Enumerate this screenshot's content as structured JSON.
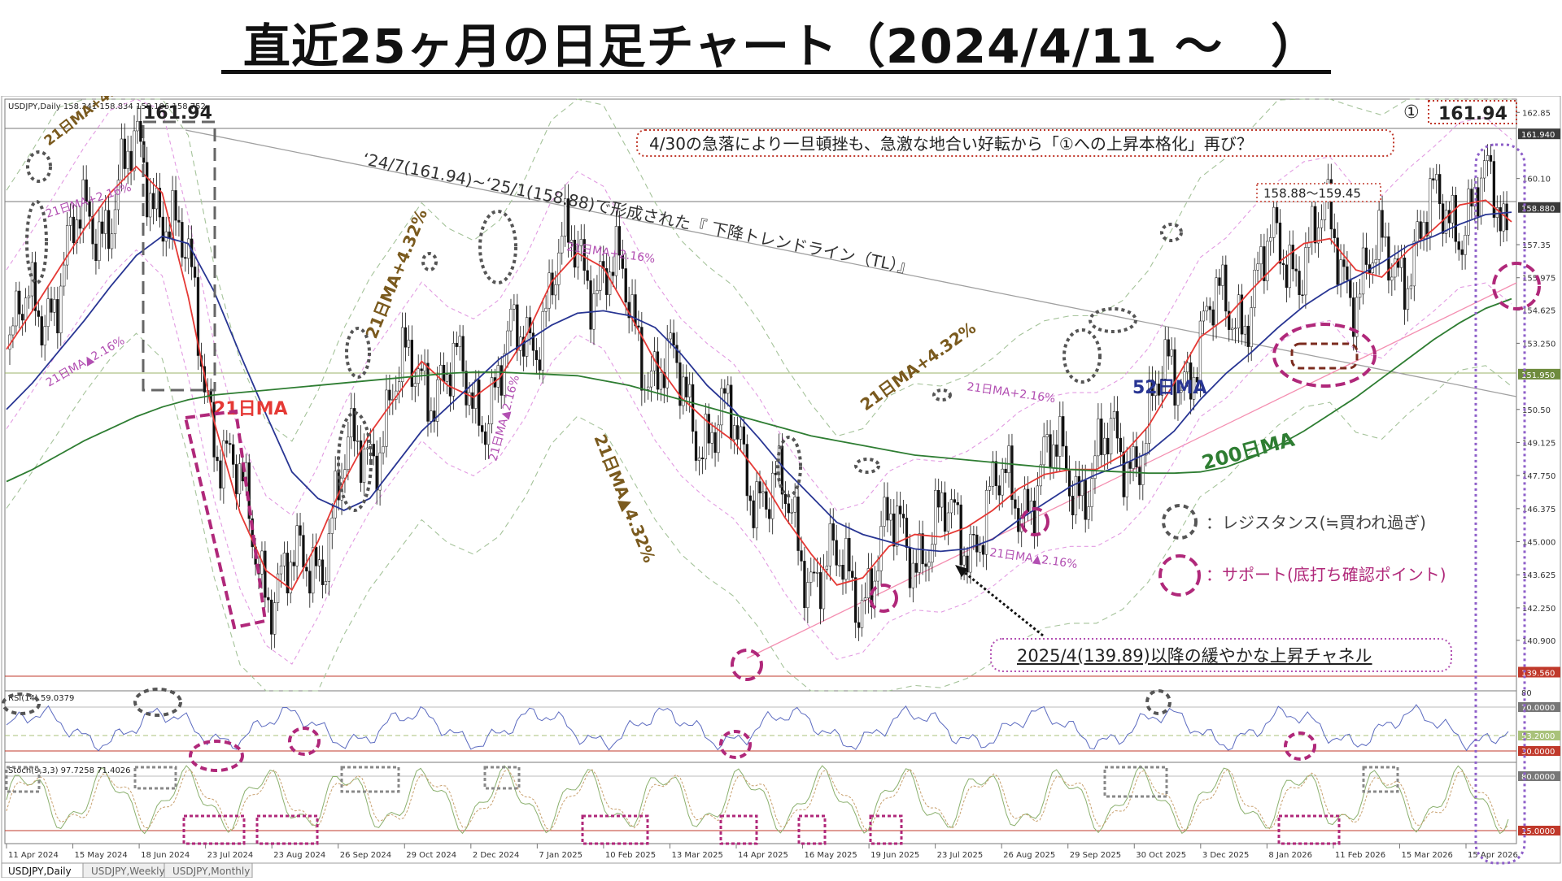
{
  "title": "直近25ヶ月の日足チャート（2024/4/11 ～　）",
  "platform": {
    "symbol_header": "USDJPY,Daily  158.341 158.834 158.195 158.752",
    "tabs": [
      "USDJPY,Daily",
      "USDJPY,Weekly",
      "USDJPY,Monthly"
    ],
    "active_tab": 0
  },
  "chart_data": {
    "type": "line",
    "title": "",
    "price_axis": {
      "ylim": [
        138.8,
        163.4
      ],
      "ticks": [
        "162.85",
        "161.940",
        "160.10",
        "158.880",
        "157.35",
        "155.975",
        "154.625",
        "153.250",
        "151.950",
        "150.50",
        "149.125",
        "147.750",
        "146.375",
        "145.000",
        "143.625",
        "142.250",
        "140.900",
        "139.560"
      ],
      "tick_values": [
        162.85,
        161.94,
        160.1,
        158.88,
        157.35,
        155.975,
        154.625,
        153.25,
        151.95,
        150.5,
        149.125,
        147.75,
        146.375,
        145.0,
        143.625,
        142.25,
        140.9,
        139.56
      ],
      "highlighted": [
        {
          "label": "161.940",
          "color": "#3a3a3a"
        },
        {
          "label": "158.880",
          "color": "#3a3a3a"
        },
        {
          "label": "151.950",
          "color": "#6e8b3d"
        },
        {
          "label": "139.560",
          "color": "#c0392b"
        }
      ]
    },
    "x_axis": {
      "labels": [
        "11 Apr 2024",
        "15 May 2024",
        "18 Jun 2024",
        "23 Jul 2024",
        "23 Aug 2024",
        "26 Sep 2024",
        "29 Oct 2024",
        "2 Dec 2024",
        "7 Jan 2025",
        "10 Feb 2025",
        "13 Mar 2025",
        "14 Apr 2025",
        "16 May 2025",
        "19 Jun 2025",
        "23 Jul 2025",
        "26 Aug 2025",
        "29 Sep 2025",
        "30 Oct 2025",
        "3 Dec 2025",
        "8 Jan 2026",
        "11 Feb 2026",
        "15 Mar 2026",
        "15 Apr 2026"
      ]
    },
    "series": [
      {
        "name": "21日MA",
        "color": "#e53935",
        "values": [
          153.0,
          154.6,
          156.3,
          158.0,
          159.5,
          160.6,
          159.5,
          155.2,
          150.0,
          146.2,
          143.8,
          143.0,
          145.0,
          147.5,
          149.5,
          151.0,
          152.5,
          151.5,
          151.0,
          151.8,
          153.5,
          155.8,
          157.0,
          156.4,
          154.5,
          152.5,
          151.0,
          150.0,
          149.2,
          147.8,
          146.0,
          144.5,
          143.2,
          143.5,
          144.8,
          145.3,
          145.2,
          145.6,
          146.3,
          147.2,
          147.8,
          148.0,
          148.0,
          148.6,
          149.8,
          151.6,
          153.5,
          154.3,
          155.5,
          156.6,
          157.4,
          157.6,
          156.3,
          156.0,
          157.1,
          158.0,
          159.0,
          159.2,
          158.3
        ]
      },
      {
        "name": "52日MA",
        "color": "#283593",
        "values": [
          150.5,
          151.6,
          152.9,
          154.2,
          155.6,
          156.9,
          157.7,
          157.4,
          155.4,
          152.8,
          150.3,
          147.9,
          146.8,
          146.3,
          146.8,
          148.2,
          149.6,
          150.6,
          151.6,
          152.6,
          153.3,
          154.0,
          154.5,
          154.6,
          154.4,
          153.9,
          152.8,
          151.5,
          150.5,
          149.3,
          148.0,
          146.9,
          145.8,
          145.3,
          145.0,
          144.7,
          144.6,
          144.7,
          145.1,
          145.9,
          146.6,
          147.3,
          147.8,
          148.2,
          148.7,
          149.6,
          150.9,
          152.0,
          152.9,
          153.9,
          154.8,
          155.5,
          156.0,
          156.6,
          157.3,
          157.7,
          158.2,
          158.6,
          158.7
        ]
      },
      {
        "name": "200日MA",
        "color": "#2e7d32",
        "values": [
          147.5,
          148.0,
          148.6,
          149.2,
          149.7,
          150.2,
          150.6,
          150.9,
          151.1,
          151.2,
          151.3,
          151.4,
          151.5,
          151.6,
          151.7,
          151.8,
          151.9,
          152.0,
          152.05,
          152.05,
          152.0,
          151.95,
          151.9,
          151.7,
          151.5,
          151.2,
          150.9,
          150.6,
          150.3,
          150.0,
          149.7,
          149.4,
          149.2,
          149.0,
          148.8,
          148.6,
          148.5,
          148.4,
          148.3,
          148.2,
          148.1,
          148.0,
          147.95,
          147.9,
          147.85,
          147.85,
          147.9,
          148.1,
          148.5,
          149.0,
          149.6,
          150.3,
          151.0,
          151.8,
          152.6,
          153.4,
          154.1,
          154.7,
          155.1
        ]
      }
    ]
  },
  "annotations": {
    "resistance_161": "161.94",
    "circle_label": "①",
    "circle_value": "161.94",
    "headline": "4/30の急落により一旦頓挫も、急激な地合い好転から「①への上昇本格化」再び？",
    "trendline": "‘24/7(161.94)~‘25/1(158.88)で形成された『 下降トレンドライン（TL）』",
    "range_label": "158.88～159.45",
    "ma21_label": "21日MA",
    "ma52_label": "52日MA",
    "ma200_label": "200日MA",
    "band_plus432_a": "21日MA+4.32%",
    "band_plus432_b": "21日MA+4.32%",
    "band_plus432_c": "21日MA+4.32%",
    "band_plus216_a": "21日MA+2.16%",
    "band_plus216_b": "21日MA+2.16%",
    "band_plus216_c": "21日MA+2.16%",
    "band_minus216_a": "21日MA▲2.16%",
    "band_minus216_b": "21日MA▲2.16%",
    "band_minus216_c": "21日MA▲2.16%",
    "band_minus432": "21日MA▲4.32%",
    "channel_label": "2025/4(139.89)以降の緩やかな上昇チャネル",
    "legend_resistance": "：レジスタンス(≒買われ過ぎ)",
    "legend_support": "：サポート(底打ち確認ポイント)"
  },
  "rsi_panel": {
    "label": "RSI(14) 59.0379",
    "ticks": [
      "80",
      "70.0000",
      "53.2000",
      "30.0000"
    ]
  },
  "stoch_panel": {
    "label": "Stoch(9,3,3) 97.7258 71.4026",
    "ticks": [
      "80.0000",
      "15.0000"
    ]
  },
  "colors": {
    "ma21": "#e53935",
    "ma52": "#283593",
    "ma200": "#2e7d32",
    "band": "#b8b8b8",
    "band_inner": "#d77bd7",
    "resistance": "#555555",
    "support": "#b0287a",
    "purple_box": "#8e5fc9",
    "gold_text": "#7a5a1e"
  }
}
